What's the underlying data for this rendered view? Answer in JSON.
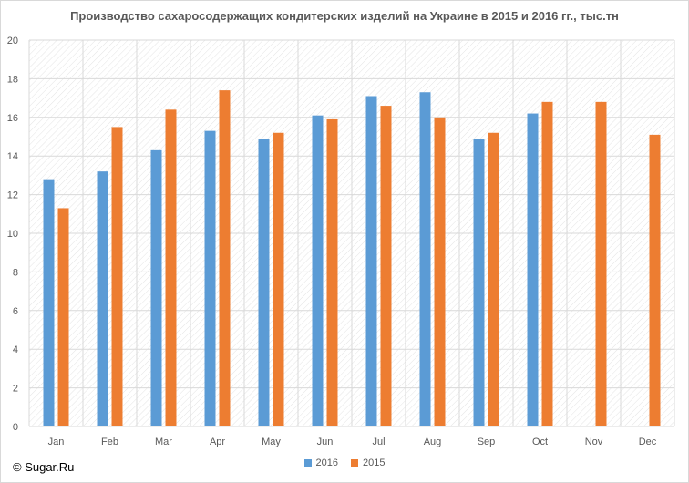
{
  "chart_data": {
    "type": "bar",
    "title": "Производство сахаросодержащих кондитерских изделий на Украине в 2015 и 2016 гг., тыс.тн",
    "categories": [
      "Jan",
      "Feb",
      "Mar",
      "Apr",
      "May",
      "Jun",
      "Jul",
      "Aug",
      "Sep",
      "Oct",
      "Nov",
      "Dec"
    ],
    "series": [
      {
        "name": "2016",
        "color": "#5b9bd5",
        "values": [
          12.8,
          13.2,
          14.3,
          15.3,
          14.9,
          16.1,
          17.1,
          17.3,
          14.9,
          16.2,
          null,
          null
        ]
      },
      {
        "name": "2015",
        "color": "#ed7d31",
        "values": [
          11.3,
          15.5,
          16.4,
          17.4,
          15.2,
          15.9,
          16.6,
          16.0,
          15.2,
          16.8,
          16.8,
          15.1
        ]
      }
    ],
    "ylim": [
      0,
      20
    ],
    "yticks": [
      0,
      2,
      4,
      6,
      8,
      10,
      12,
      14,
      16,
      18,
      20
    ],
    "grid": true,
    "legend_position": "bottom"
  },
  "watermark": "© Sugar.Ru"
}
